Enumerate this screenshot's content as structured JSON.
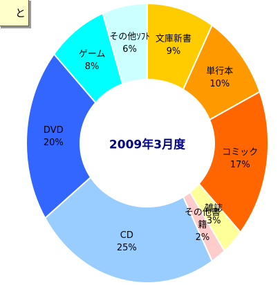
{
  "chart_data": {
    "type": "donut",
    "center_text": "2009年3月度",
    "annotation": "と",
    "categories": [
      "文庫新書",
      "単行本",
      "コミック",
      "雑誌",
      "その他書籍",
      "CD",
      "DVD",
      "ゲーム",
      "その他ｿﾌﾄ"
    ],
    "values": [
      9,
      10,
      17,
      3,
      2,
      25,
      20,
      8,
      6
    ],
    "value_labels": [
      "9%",
      "10%",
      "17%",
      "3%",
      "2%",
      "25%",
      "20%",
      "8%",
      "6%"
    ],
    "colors": [
      "#ffcc00",
      "#ff9900",
      "#ff6600",
      "#ffff99",
      "#ffcccc",
      "#99ccff",
      "#3366ff",
      "#00ffff",
      "#ccffff"
    ]
  }
}
